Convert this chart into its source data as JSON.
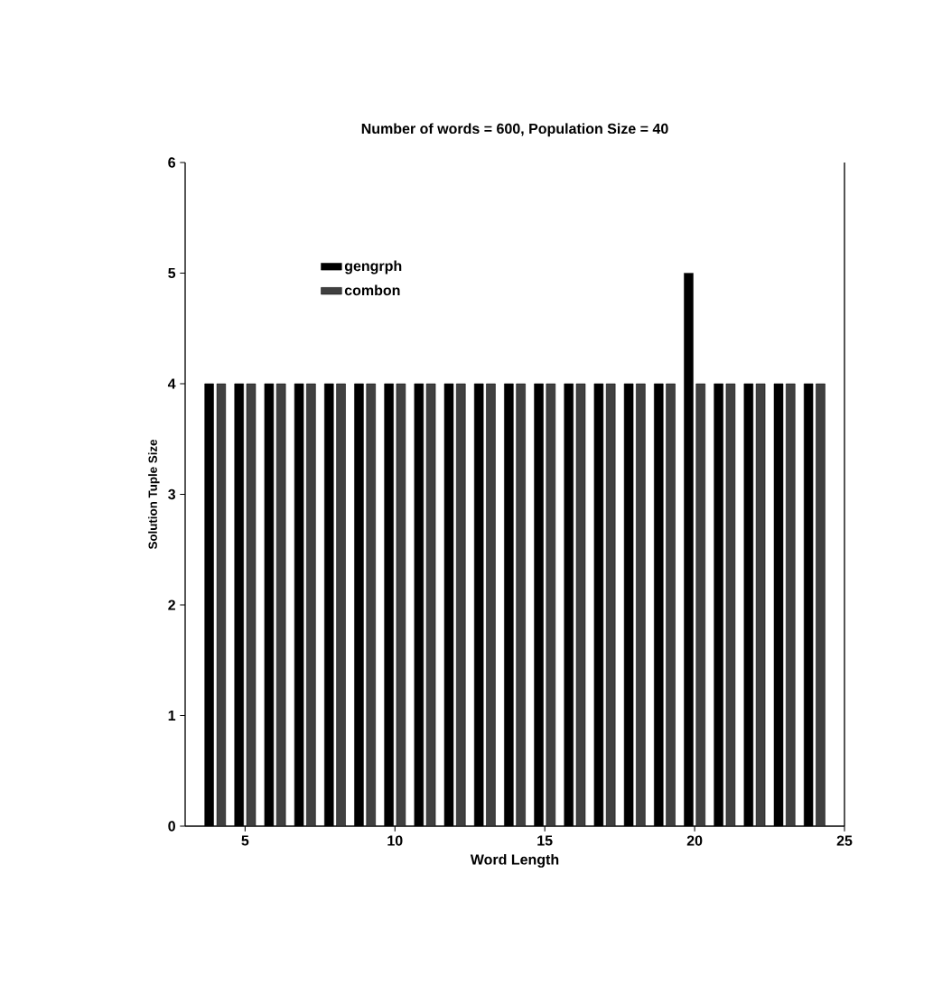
{
  "chart_data": {
    "type": "bar",
    "title": "Number of words = 600, Population Size = 40",
    "xlabel": "Word Length",
    "ylabel": "Solution Tuple Size",
    "x": [
      4,
      5,
      6,
      7,
      8,
      9,
      10,
      11,
      12,
      13,
      14,
      15,
      16,
      17,
      18,
      19,
      20,
      21,
      22,
      23,
      24
    ],
    "series": [
      {
        "name": "gengrph",
        "color": "#000000",
        "values": [
          4,
          4,
          4,
          4,
          4,
          4,
          4,
          4,
          4,
          4,
          4,
          4,
          4,
          4,
          4,
          4,
          5,
          4,
          4,
          4,
          4
        ]
      },
      {
        "name": "combon",
        "color": "#404040",
        "values": [
          4,
          4,
          4,
          4,
          4,
          4,
          4,
          4,
          4,
          4,
          4,
          4,
          4,
          4,
          4,
          4,
          4,
          4,
          4,
          4,
          4
        ]
      }
    ],
    "xlim": [
      3,
      25
    ],
    "ylim": [
      0,
      6
    ],
    "xticks": [
      5,
      10,
      15,
      20,
      25
    ],
    "yticks": [
      0,
      1,
      2,
      3,
      4,
      5,
      6
    ],
    "legend": "top left",
    "grid": false
  }
}
